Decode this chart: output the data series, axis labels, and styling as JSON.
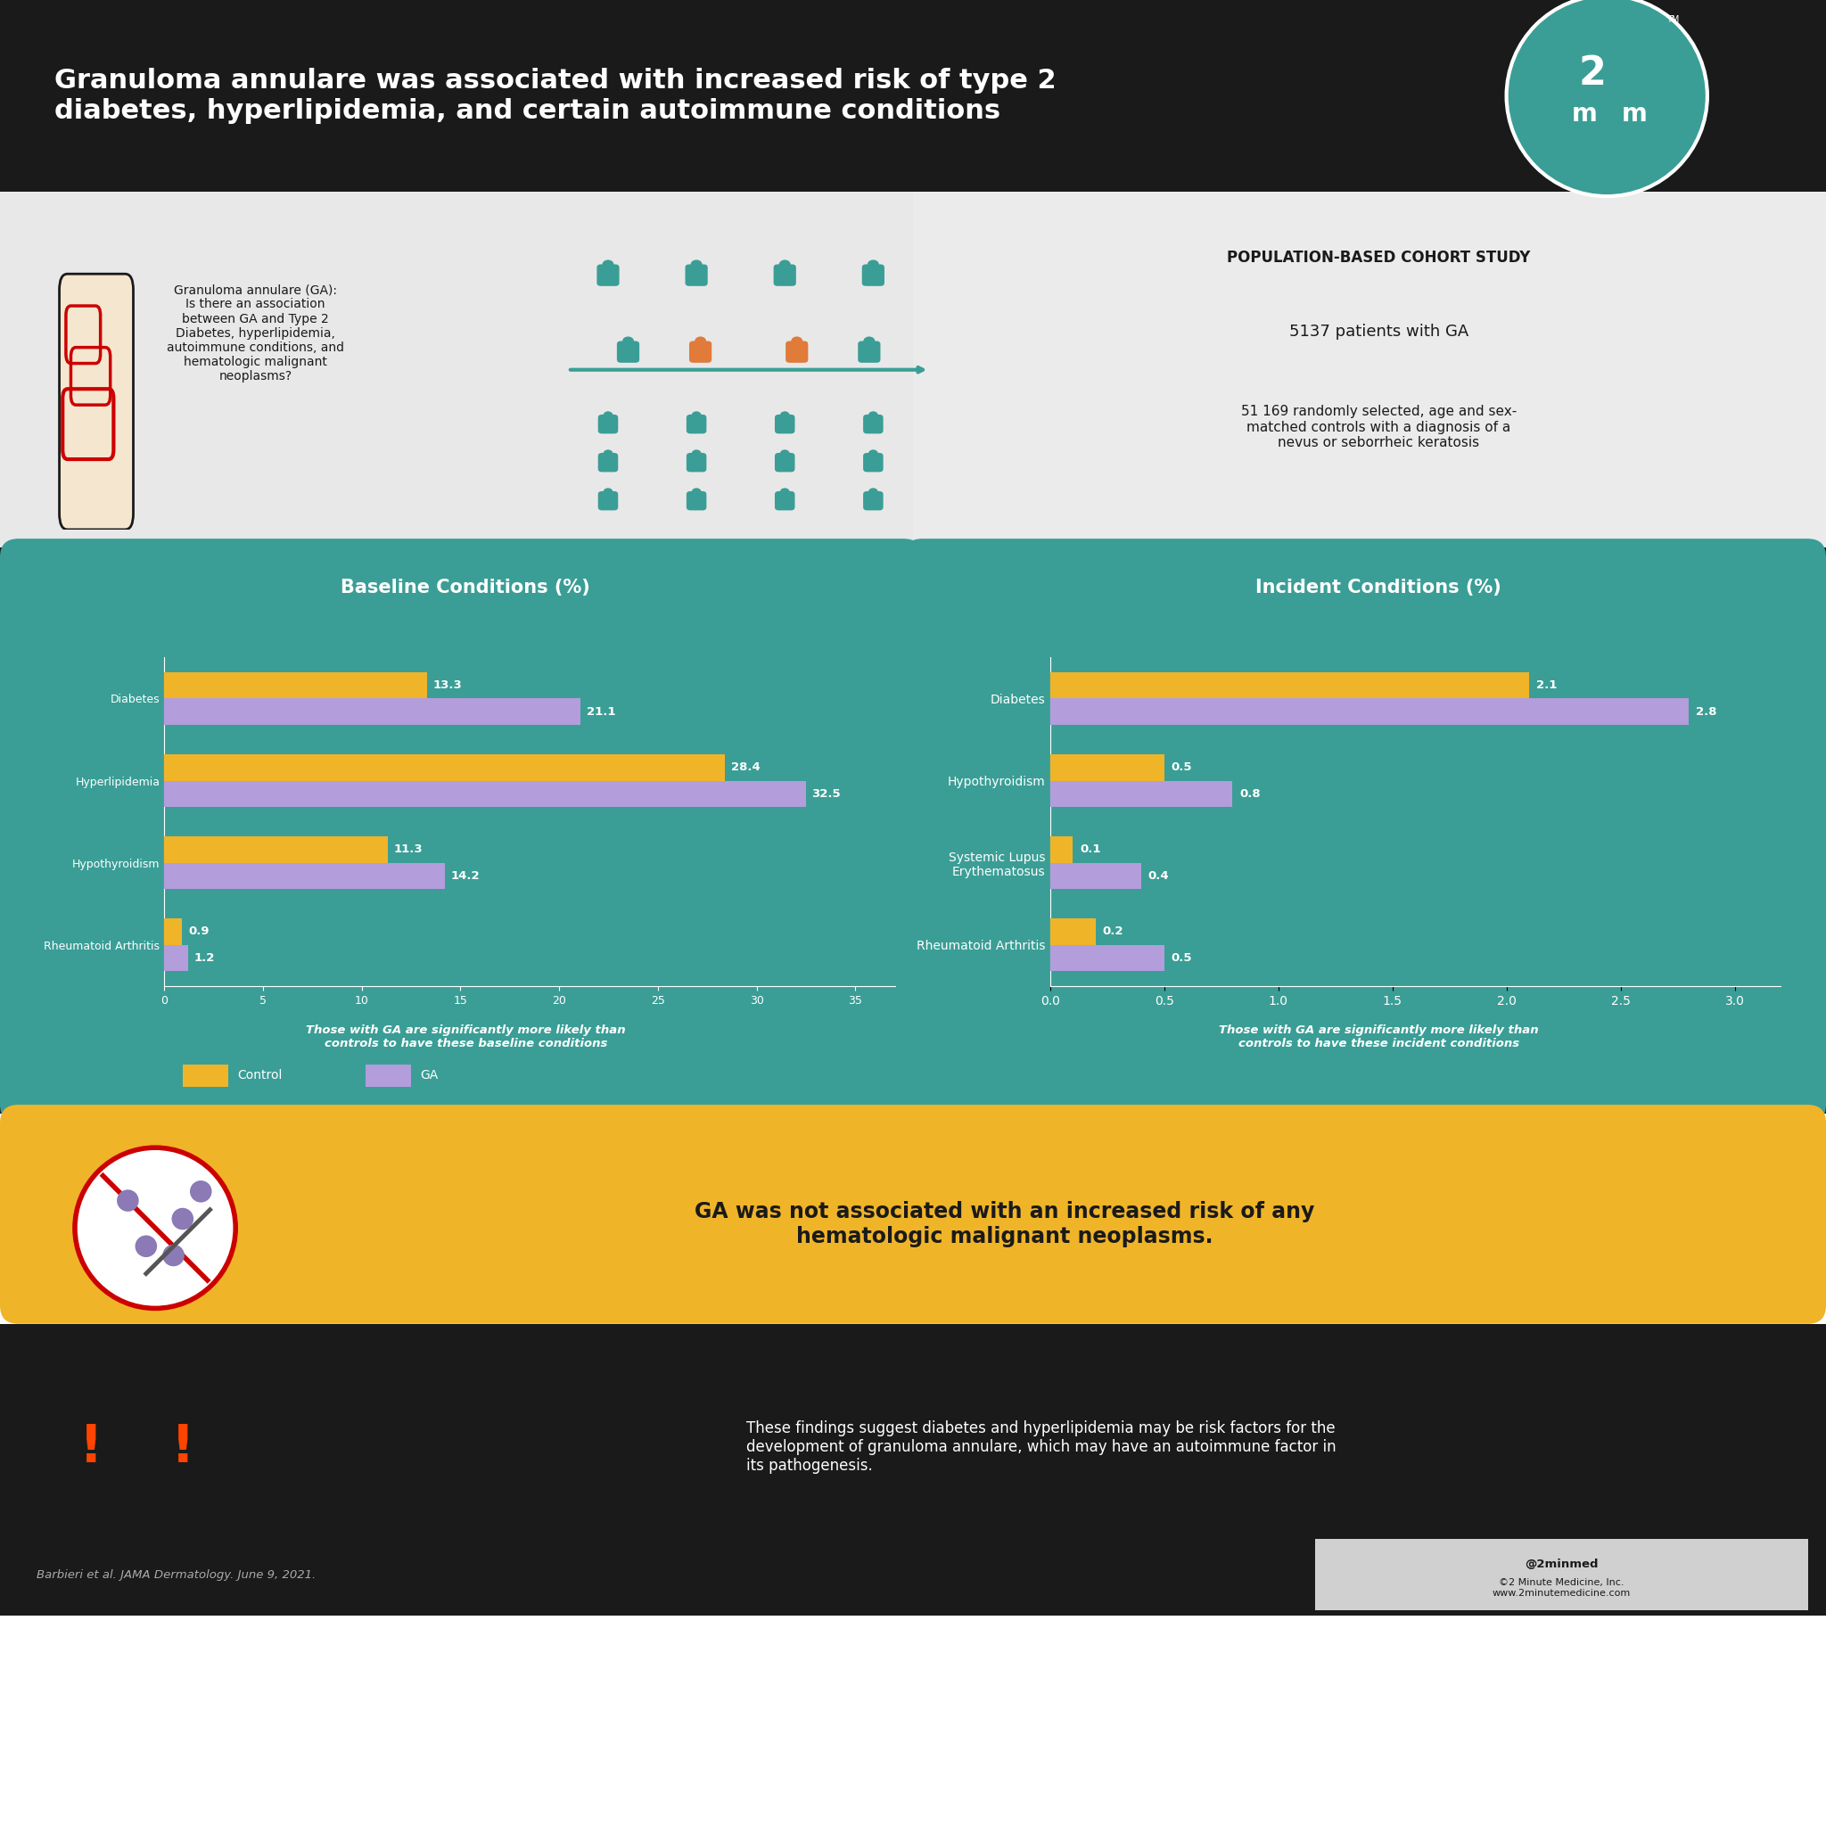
{
  "title": "Granuloma annulare was associated with increased risk of type 2\ndiabetes, hyperlipidemia, and certain autoimmune conditions",
  "title_bg": "#1a1a1a",
  "title_color": "#ffffff",
  "header_bg": "#f0f0f0",
  "teal_color": "#3a9e96",
  "teal_dark": "#2d7d78",
  "gold_color": "#f0b429",
  "purple_color": "#b39ddb",
  "orange_color": "#e07b3a",
  "red_color": "#cc0000",
  "baseline_title": "Baseline Conditions (%)",
  "incident_title": "Incident Conditions (%)",
  "baseline_categories": [
    "Rheumatoid Arthritis",
    "Hypothyroidism",
    "Hyperlipidemia",
    "Diabetes"
  ],
  "baseline_control": [
    0.9,
    11.3,
    28.4,
    13.3
  ],
  "baseline_ga": [
    1.2,
    14.2,
    32.5,
    21.1
  ],
  "baseline_xlim": [
    0,
    37
  ],
  "incident_categories": [
    "Rheumatoid Arthritis",
    "Systemic Lupus\nErythematosus",
    "Hypothyroidism",
    "Diabetes"
  ],
  "incident_control": [
    0.2,
    0.1,
    0.5,
    2.1
  ],
  "incident_ga": [
    0.5,
    0.4,
    0.8,
    2.8
  ],
  "incident_xlim": [
    0,
    3.2
  ],
  "legend_control": "Control",
  "legend_ga": "GA",
  "baseline_note": "Those with GA are significantly more likely than\ncontrols to have these baseline conditions",
  "incident_note": "Those with GA are significantly more likely than\ncontrols to have these incident conditions",
  "study_type": "POPULATION-BASED COHORT STUDY",
  "patients_ga": "5137 patients with GA",
  "patients_control": "51 169 randomly selected, age and sex-\nmatched controls with a diagnosis of a\nnevus or seborrheic keratosis",
  "question_text": "Granuloma annulare (GA):\nIs there an association\nbetween GA and Type 2\nDiabetes, hyperlipidemia,\nautoimmune conditions, and\nhematologic malignant\nneoplasms?",
  "not_associated_text": "GA was not associated with an increased risk of any\nhematologic malignant neoplasms.",
  "conclusion_text": "These findings suggest diabetes and hyperlipidemia may be risk factors for the\ndevelopment of granuloma annulare, which may have an autoimmune factor in\nits pathogenesis.",
  "citation": "Barbieri et al. JAMA Dermatology. June 9, 2021.",
  "social": "@2minmed",
  "copyright": "©2 Minute Medicine, Inc.\nwww.2minutemedicine.com",
  "logo_bg": "#3a9e96",
  "bottom_bg": "#1a1a1a",
  "gold_bg": "#f0b429",
  "grey_bg": "#e8e8e8"
}
